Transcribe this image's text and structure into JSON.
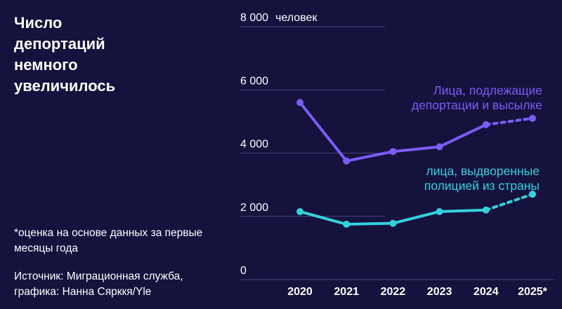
{
  "title": "Число\nдепортаций\nнемного\nувеличилось",
  "note": "*оценка на основе данных за первые месяцы года",
  "source": "Источник: Миграционная служба, графика: Нанна Сярккя/Yle",
  "chart_data": {
    "type": "line",
    "title": "Число депортаций немного увеличилось",
    "y_unit": "человек",
    "ylim": [
      0,
      8000
    ],
    "yticks": [
      0,
      2000,
      4000,
      6000,
      8000
    ],
    "ytick_labels": [
      "0",
      "2 000",
      "4 000",
      "6 000",
      "8 000"
    ],
    "categories": [
      "2020",
      "2021",
      "2022",
      "2023",
      "2024",
      "2025*"
    ],
    "grid": true,
    "series": [
      {
        "name": "Лица, подлежащие депортации и высылке",
        "label_lines": [
          "Лица, подлежащие",
          "депортации и высылке"
        ],
        "color": "#7b5cf5",
        "values": [
          5600,
          3750,
          4050,
          4200,
          4900,
          5100
        ],
        "estimated_from_index": 4
      },
      {
        "name": "лица, выдворенные полицией из страны",
        "label_lines": [
          "лица, выдворенные",
          "полицией из страны"
        ],
        "color": "#34d1dc",
        "values": [
          2150,
          1750,
          1780,
          2150,
          2200,
          2700
        ],
        "estimated_from_index": 4
      }
    ]
  }
}
